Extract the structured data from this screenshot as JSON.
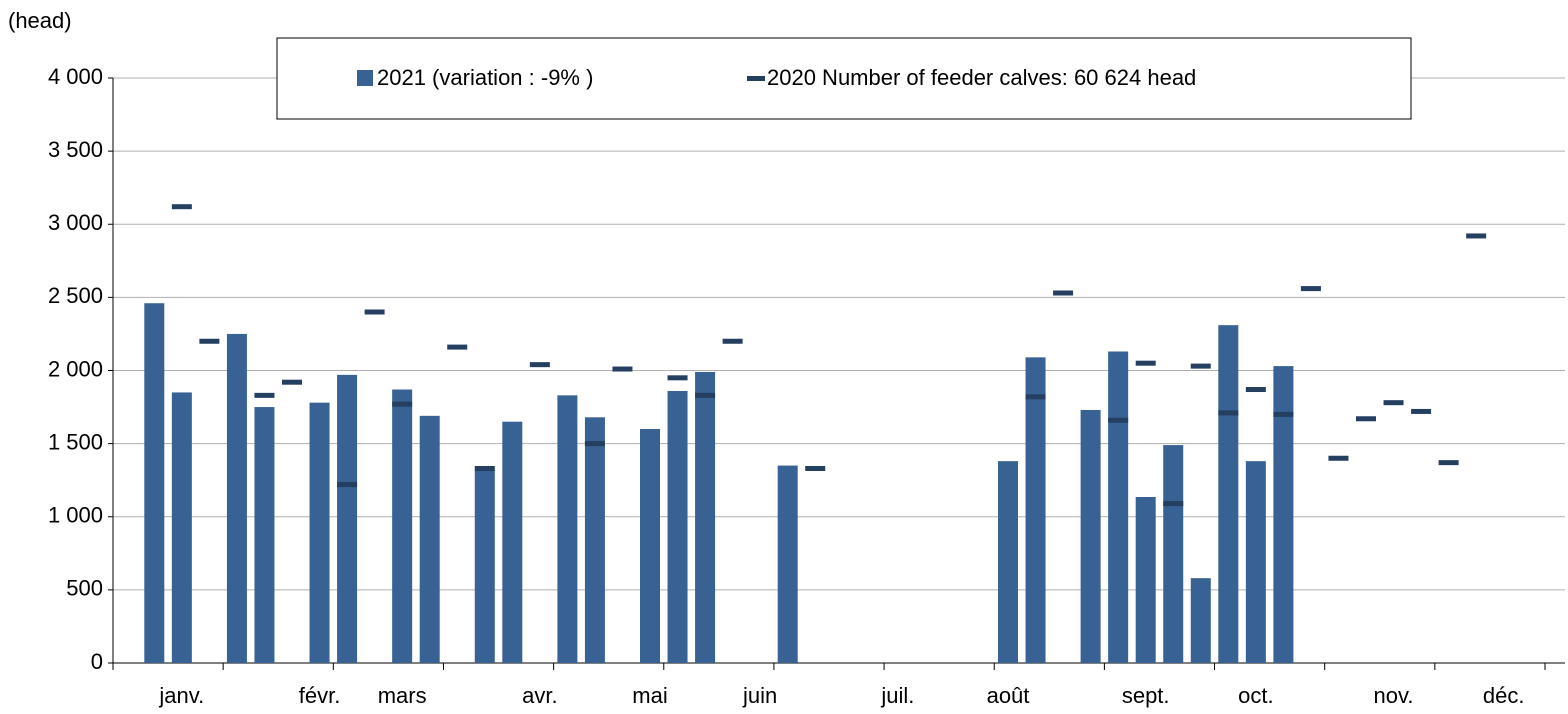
{
  "chart_data": {
    "type": "bar",
    "y_label": "(head)",
    "categories": [
      null,
      null,
      "janv.",
      null,
      null,
      null,
      null,
      "févr.",
      null,
      null,
      "mars",
      null,
      null,
      null,
      null,
      "avr.",
      null,
      null,
      null,
      "mai",
      null,
      null,
      null,
      "juin",
      null,
      null,
      null,
      null,
      "juil.",
      null,
      null,
      null,
      "août",
      null,
      null,
      null,
      null,
      "sept.",
      null,
      null,
      null,
      "oct.",
      null,
      null,
      null,
      null,
      "nov.",
      null,
      null,
      null,
      "déc.",
      null
    ],
    "series": [
      {
        "name": "2021 (variation : -9% )",
        "kind": "bar",
        "color": "#386194",
        "values": [
          null,
          2460,
          1850,
          null,
          2250,
          1750,
          null,
          1780,
          1970,
          null,
          1870,
          1690,
          null,
          1320,
          1650,
          null,
          1830,
          1680,
          null,
          1600,
          1860,
          1990,
          null,
          null,
          1350,
          null,
          null,
          null,
          null,
          null,
          null,
          null,
          1380,
          2090,
          null,
          1730,
          2130,
          1135,
          1490,
          580,
          2310,
          1380,
          2030,
          null,
          null,
          null,
          null,
          null,
          null,
          null,
          null,
          null
        ]
      },
      {
        "name": "2020 Number of feeder calves: 60 624 head",
        "kind": "marker",
        "color": "#243f60",
        "values": [
          null,
          null,
          3120,
          2200,
          null,
          1830,
          1920,
          null,
          1220,
          2400,
          1770,
          null,
          2160,
          1330,
          null,
          2040,
          null,
          1500,
          2010,
          null,
          1950,
          1830,
          2200,
          null,
          null,
          1330,
          null,
          null,
          null,
          null,
          null,
          null,
          null,
          1820,
          2530,
          null,
          1660,
          2050,
          1090,
          2030,
          1710,
          1870,
          1700,
          2560,
          1400,
          1670,
          1780,
          1720,
          1370,
          2920,
          null,
          null
        ]
      }
    ],
    "ylim": [
      0,
      4000
    ],
    "yticks": [
      0,
      500,
      {
        "value": 1000,
        "label": "1 000"
      },
      {
        "value": 1500,
        "label": "1 500"
      },
      {
        "value": 2000,
        "label": "2 000"
      },
      {
        "value": 2500,
        "label": "2 500"
      },
      {
        "value": 3000,
        "label": "3 000"
      },
      {
        "value": 3500,
        "label": "3 500"
      },
      {
        "value": 4000,
        "label": "4 000"
      }
    ],
    "grid": true,
    "legend": "top"
  }
}
